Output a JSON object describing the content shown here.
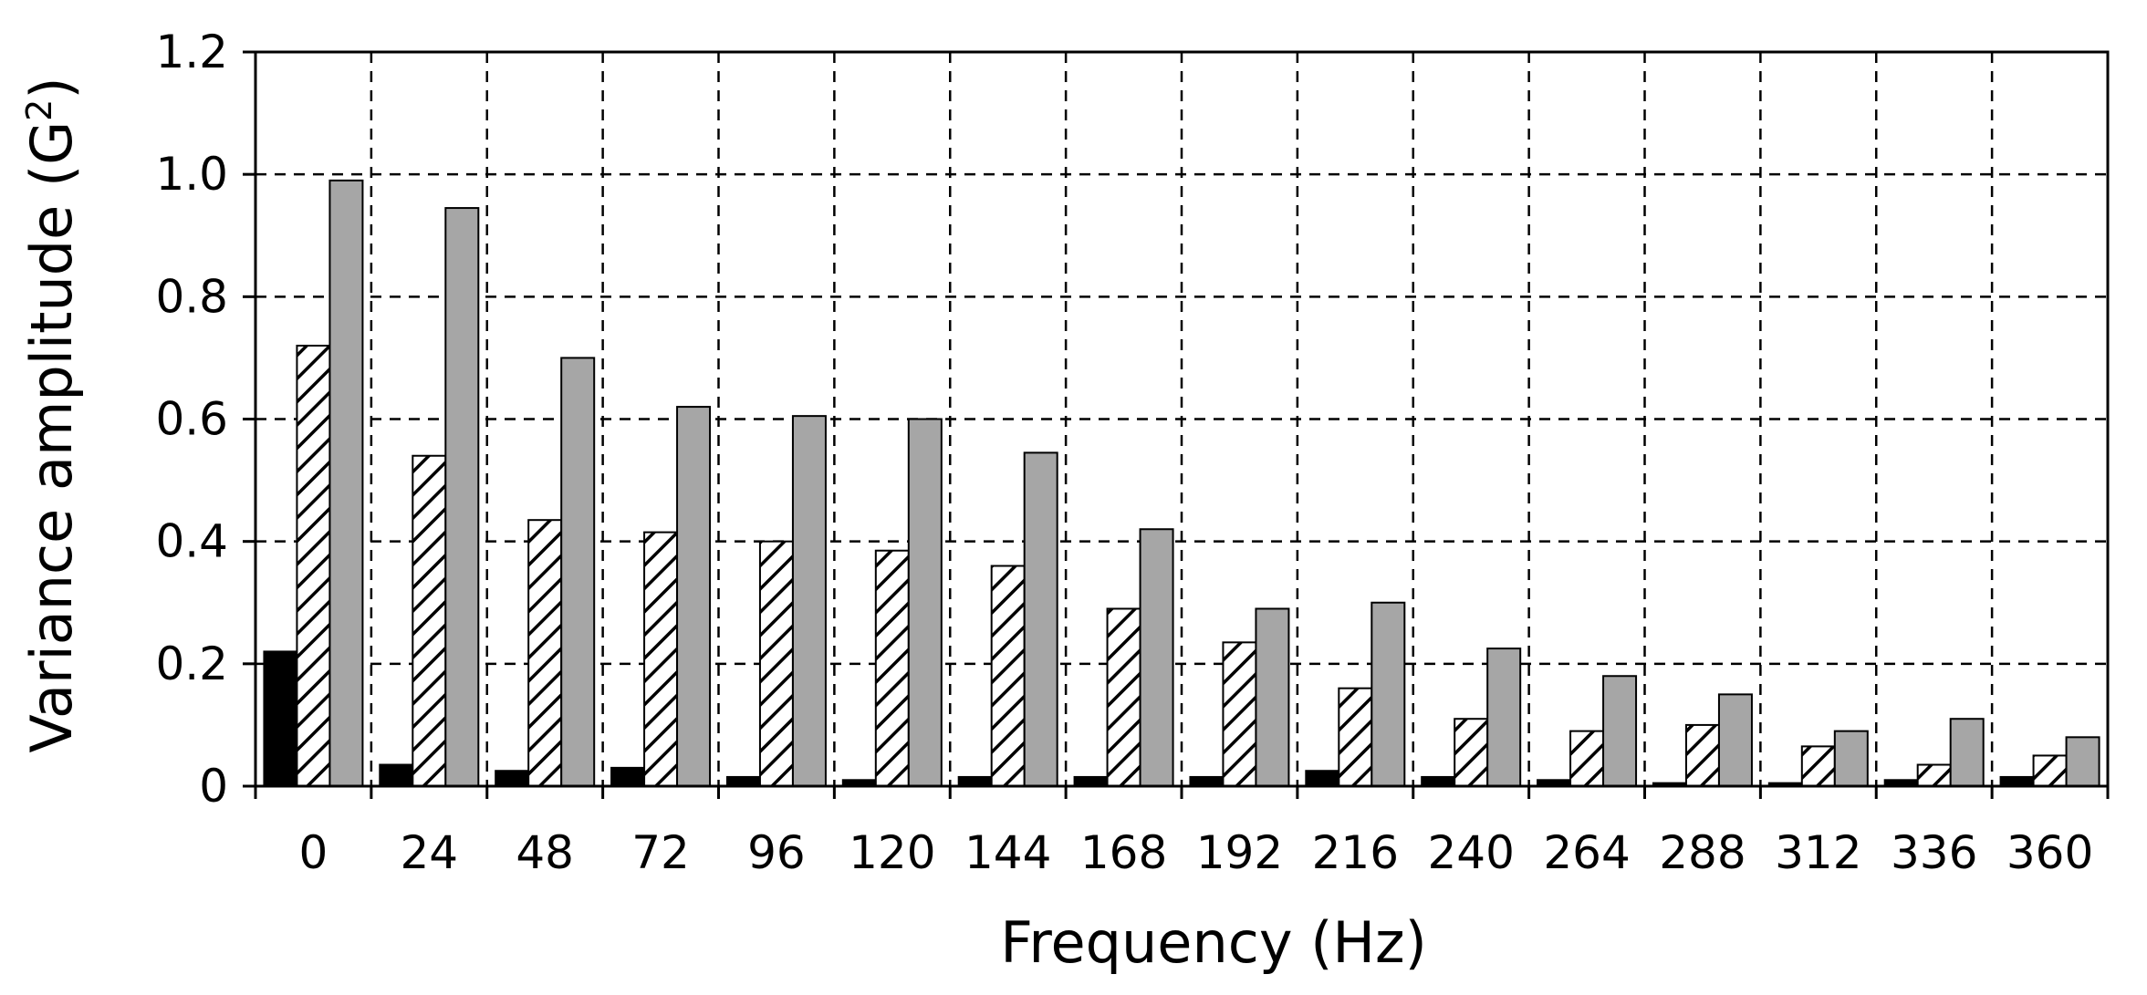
{
  "chart_data": {
    "type": "bar",
    "title": "",
    "xlabel": "Frequency (Hz)",
    "ylabel_main": "Variance amplitude (G",
    "ylabel_sup": "2",
    "ylabel_close": ")",
    "categories": [
      "0",
      "24",
      "48",
      "72",
      "96",
      "120",
      "144",
      "168",
      "192",
      "216",
      "240",
      "264",
      "288",
      "312",
      "336",
      "360"
    ],
    "yticks": [
      "0",
      "0.2",
      "0.4",
      "0.6",
      "0.8",
      "1.0",
      "1.2"
    ],
    "ylim": [
      0,
      1.2
    ],
    "grid": true,
    "legend": "none",
    "series": [
      {
        "fill": "#000000",
        "pattern": "solid",
        "values": [
          0.22,
          0.035,
          0.025,
          0.03,
          0.015,
          0.01,
          0.015,
          0.015,
          0.015,
          0.025,
          0.015,
          0.01,
          0.005,
          0.005,
          0.01,
          0.015
        ]
      },
      {
        "fill": "#ffffff",
        "pattern": "hatched",
        "values": [
          0.72,
          0.54,
          0.435,
          0.415,
          0.4,
          0.385,
          0.36,
          0.29,
          0.235,
          0.16,
          0.11,
          0.09,
          0.1,
          0.065,
          0.035,
          0.05
        ]
      },
      {
        "fill": "#a6a6a6",
        "pattern": "solid",
        "values": [
          0.99,
          0.945,
          0.7,
          0.62,
          0.605,
          0.6,
          0.545,
          0.42,
          0.29,
          0.3,
          0.225,
          0.18,
          0.15,
          0.09,
          0.11,
          0.08
        ]
      }
    ]
  }
}
